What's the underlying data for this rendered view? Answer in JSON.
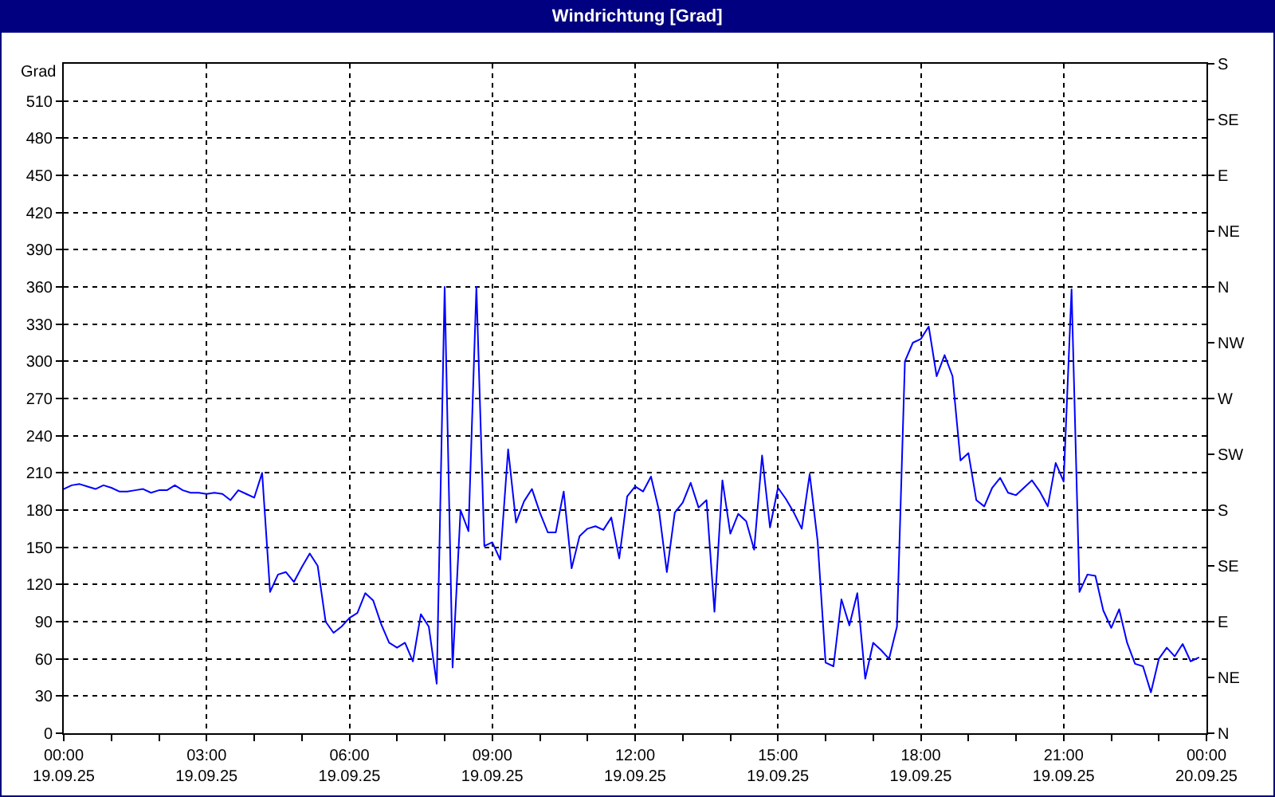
{
  "chart_data": {
    "type": "line",
    "title": "Windrichtung [Grad]",
    "ylabel": "Grad",
    "x": [
      "--09-19T00:00",
      "--09-19T00:10",
      "--09-19T00:20",
      "--09-19T00:30",
      "--09-19T00:40",
      "--09-19T00:50",
      "--09-19T01:00",
      "--09-19T01:10",
      "--09-19T01:20",
      "--09-19T01:30",
      "--09-19T01:40",
      "--09-19T01:50",
      "--09-19T02:00",
      "--09-19T02:10",
      "--09-19T02:20",
      "--09-19T02:30",
      "--09-19T02:40",
      "--09-19T02:50",
      "--09-19T03:00",
      "--09-19T03:10",
      "--09-19T03:20",
      "--09-19T03:30",
      "--09-19T03:40",
      "--09-19T03:50",
      "--09-19T04:00",
      "--09-19T04:10",
      "--09-19T04:20",
      "--09-19T04:30",
      "--09-19T04:40",
      "--09-19T04:50",
      "--09-19T05:00",
      "--09-19T05:10",
      "--09-19T05:20",
      "--09-19T05:30",
      "--09-19T05:40",
      "--09-19T05:50",
      "--09-19T06:00",
      "--09-19T06:10",
      "--09-19T06:20",
      "--09-19T06:30",
      "--09-19T06:40",
      "--09-19T06:50",
      "--09-19T07:00",
      "--09-19T07:10",
      "--09-19T07:20",
      "--09-19T07:30",
      "--09-19T07:40",
      "--09-19T07:50",
      "--09-19T08:00",
      "--09-19T08:10",
      "--09-19T08:20",
      "--09-19T08:30",
      "--09-19T08:40",
      "--09-19T08:50",
      "--09-19T09:00",
      "--09-19T09:10",
      "--09-19T09:20",
      "--09-19T09:30",
      "--09-19T09:40",
      "--09-19T09:50",
      "--09-19T10:00",
      "--09-19T10:10",
      "--09-19T10:20",
      "--09-19T10:30",
      "--09-19T10:40",
      "--09-19T10:50",
      "--09-19T11:00",
      "--09-19T11:10",
      "--09-19T11:20",
      "--09-19T11:30",
      "--09-19T11:40",
      "--09-19T11:50",
      "--09-19T12:00",
      "--09-19T12:10",
      "--09-19T12:20",
      "--09-19T12:30",
      "--09-19T12:40",
      "--09-19T12:50",
      "--09-19T13:00",
      "--09-19T13:10",
      "--09-19T13:20",
      "--09-19T13:30",
      "--09-19T13:40",
      "--09-19T13:50",
      "--09-19T14:00",
      "--09-19T14:10",
      "--09-19T14:20",
      "--09-19T14:30",
      "--09-19T14:40",
      "--09-19T14:50",
      "--09-19T15:00",
      "--09-19T15:10",
      "--09-19T15:20",
      "--09-19T15:30",
      "--09-19T15:40",
      "--09-19T15:50",
      "--09-19T16:00",
      "--09-19T16:10",
      "--09-19T16:20",
      "--09-19T16:30",
      "--09-19T16:40",
      "--09-19T16:50",
      "--09-19T17:00",
      "--09-19T17:10",
      "--09-19T17:20",
      "--09-19T17:30",
      "--09-19T17:40",
      "--09-19T17:50",
      "--09-19T18:00",
      "--09-19T18:10",
      "--09-19T18:20",
      "--09-19T18:30",
      "--09-19T18:40",
      "--09-19T18:50",
      "--09-19T19:00",
      "--09-19T19:10",
      "--09-19T19:20",
      "--09-19T19:30",
      "--09-19T19:40",
      "--09-19T19:50",
      "--09-19T20:00",
      "--09-19T20:10",
      "--09-19T20:20",
      "--09-19T20:30",
      "--09-19T20:40",
      "--09-19T20:50",
      "--09-19T21:00",
      "--09-19T21:10",
      "--09-19T21:20",
      "--09-19T21:30",
      "--09-19T21:40",
      "--09-19T21:50",
      "--09-19T22:00",
      "--09-19T22:10",
      "--09-19T22:20",
      "--09-19T22:30",
      "--09-19T22:40",
      "--09-19T22:50",
      "--09-19T23:00",
      "--09-19T23:10",
      "--09-19T23:20",
      "--09-19T23:30",
      "--09-19T23:40",
      "--09-19T23:50"
    ],
    "series": [
      {
        "color": "#0000ff",
        "values": [
          197,
          200,
          201,
          199,
          197,
          200,
          198,
          195,
          195,
          196,
          197,
          194,
          196,
          196,
          200,
          196,
          194,
          194,
          193,
          194,
          193,
          188,
          196,
          193,
          190,
          210,
          114,
          128,
          130,
          122,
          134,
          145,
          135,
          90,
          81,
          86,
          93,
          97,
          113,
          107,
          88,
          73,
          69,
          73,
          58,
          96,
          86,
          40,
          360,
          53,
          180,
          163,
          360,
          151,
          154,
          140,
          229,
          170,
          187,
          197,
          178,
          162,
          162,
          195,
          133,
          159,
          165,
          167,
          164,
          174,
          141,
          191,
          199,
          195,
          207,
          180,
          130,
          178,
          186,
          202,
          182,
          188,
          98,
          204,
          161,
          177,
          171,
          148,
          224,
          166,
          198,
          189,
          178,
          165,
          209,
          155,
          57,
          54,
          108,
          87,
          113,
          44,
          73,
          67,
          60,
          86,
          300,
          315,
          318,
          328,
          288,
          305,
          288,
          220,
          226,
          188,
          183,
          198,
          206,
          194,
          192,
          198,
          204,
          195,
          183,
          218,
          203,
          358,
          114,
          128,
          127,
          99,
          85,
          100,
          73,
          56,
          54,
          33,
          60,
          69,
          62,
          72,
          58,
          61
        ]
      }
    ],
    "xlim": [
      "--09-19T00:00",
      "--09-20T00:00"
    ],
    "xticks": [
      {
        "value": "--09-19T00:00",
        "label": "00:00\n19.09.25"
      },
      {
        "value": "--09-19T01:00",
        "label": null
      },
      {
        "value": "--09-19T02:00",
        "label": null
      },
      {
        "value": "--09-19T03:00",
        "label": "03:00\n19.09.25"
      },
      {
        "value": "--09-19T04:00",
        "label": null
      },
      {
        "value": "--09-19T05:00",
        "label": null
      },
      {
        "value": "--09-19T06:00",
        "label": "06:00\n19.09.25"
      },
      {
        "value": "--09-19T07:00",
        "label": null
      },
      {
        "value": "--09-19T08:00",
        "label": null
      },
      {
        "value": "--09-19T09:00",
        "label": "09:00\n19.09.25"
      },
      {
        "value": "--09-19T10:00",
        "label": null
      },
      {
        "value": "--09-19T11:00",
        "label": null
      },
      {
        "value": "--09-19T12:00",
        "label": "12:00\n19.09.25"
      },
      {
        "value": "--09-19T13:00",
        "label": null
      },
      {
        "value": "--09-19T14:00",
        "label": null
      },
      {
        "value": "--09-19T15:00",
        "label": "15:00\n19.09.25"
      },
      {
        "value": "--09-19T16:00",
        "label": null
      },
      {
        "value": "--09-19T17:00",
        "label": null
      },
      {
        "value": "--09-19T18:00",
        "label": "18:00\n19.09.25"
      },
      {
        "value": "--09-19T19:00",
        "label": null
      },
      {
        "value": "--09-19T20:00",
        "label": null
      },
      {
        "value": "--09-19T21:00",
        "label": "21:00\n19.09.25"
      },
      {
        "value": "--09-19T22:00",
        "label": null
      },
      {
        "value": "--09-19T23:00",
        "label": null
      },
      {
        "value": "--09-20T00:00",
        "label": "00:00\n20.09.25"
      }
    ],
    "ylim": [
      0,
      540
    ],
    "yticks": [
      0,
      30,
      60,
      90,
      120,
      150,
      180,
      210,
      240,
      270,
      300,
      330,
      360,
      390,
      420,
      450,
      480,
      510
    ],
    "y2_categories": [
      "S",
      "SE",
      "E",
      "NE",
      "N",
      "NW",
      "W",
      "SW",
      "S",
      "SE",
      "E",
      "NE",
      "N"
    ],
    "grid": true,
    "marker": "none",
    "line_style": "solid"
  }
}
